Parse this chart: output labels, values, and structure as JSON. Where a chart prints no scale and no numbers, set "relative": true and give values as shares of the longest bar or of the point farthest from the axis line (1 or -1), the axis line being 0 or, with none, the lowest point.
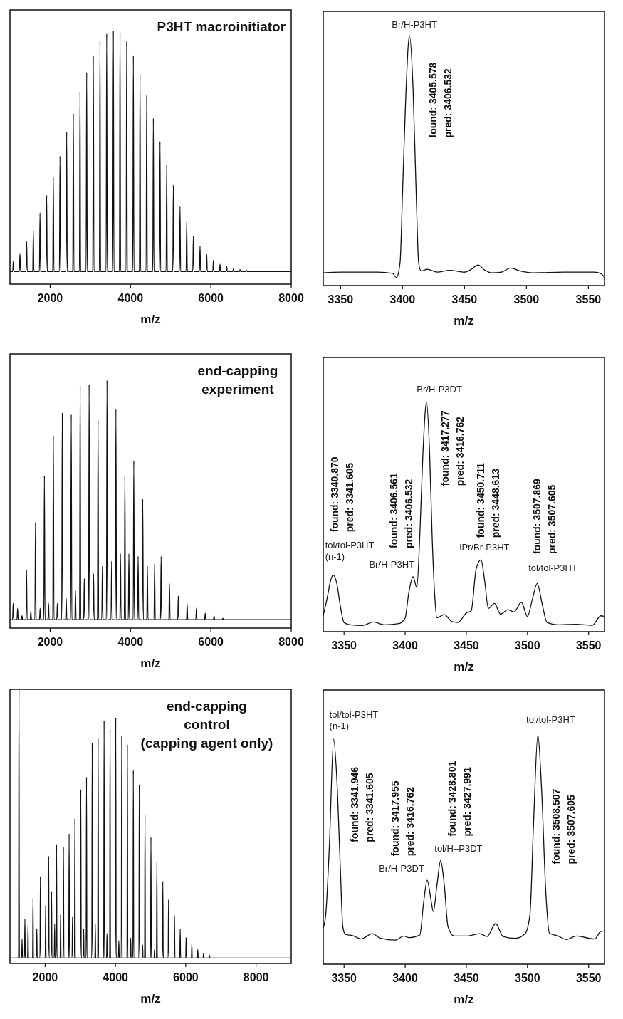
{
  "chart_data": [
    {
      "type": "line",
      "relative": true,
      "title": "P3HT macroinitiator",
      "xlabel": "m/z",
      "xlim": [
        1000,
        8000
      ],
      "xticks": [
        2000,
        4000,
        6000,
        8000
      ],
      "x": [
        1000,
        1068,
        1083,
        1098,
        1234,
        1249,
        1264,
        1400,
        1415,
        1430,
        1566,
        1581,
        1596,
        1732,
        1747,
        1762,
        1898,
        1913,
        1928,
        2064,
        2079,
        2094,
        2230,
        2245,
        2260,
        2396,
        2411,
        2426,
        2562,
        2577,
        2592,
        2728,
        2743,
        2758,
        2894,
        2909,
        2924,
        3060,
        3075,
        3090,
        3226,
        3241,
        3256,
        3392,
        3407,
        3422,
        3558,
        3573,
        3588,
        3724,
        3739,
        3754,
        3890,
        3905,
        3920,
        4056,
        4071,
        4086,
        4222,
        4237,
        4252,
        4388,
        4403,
        4418,
        4554,
        4569,
        4584,
        4720,
        4735,
        4750,
        4886,
        4901,
        4916,
        5052,
        5067,
        5082,
        5218,
        5233,
        5248,
        5384,
        5399,
        5414,
        5550,
        5565,
        5580,
        5716,
        5731,
        5746,
        5882,
        5897,
        5912,
        6048,
        6063,
        6078,
        6214,
        6229,
        6244,
        6380,
        6395,
        6410,
        6546,
        6561,
        6576,
        6712,
        6727,
        6742,
        6878,
        6893,
        6908,
        8000
      ],
      "series": [
        {
          "color": "#111111",
          "values": [
            0.05,
            0.05,
            0.089,
            0.05,
            0.05,
            0.121,
            0.05,
            0.05,
            0.168,
            0.05,
            0.05,
            0.213,
            0.05,
            0.05,
            0.282,
            0.05,
            0.05,
            0.351,
            0.05,
            0.05,
            0.422,
            0.05,
            0.05,
            0.506,
            0.05,
            0.05,
            0.6,
            0.05,
            0.05,
            0.674,
            0.05,
            0.05,
            0.762,
            0.05,
            0.05,
            0.837,
            0.05,
            0.05,
            0.901,
            0.05,
            0.05,
            0.96,
            0.05,
            0.05,
            0.989,
            0.05,
            0.05,
            1,
            0.05,
            0.05,
            0.994,
            0.05,
            0.05,
            0.96,
            0.05,
            0.05,
            0.903,
            0.05,
            0.05,
            0.829,
            0.05,
            0.05,
            0.746,
            0.05,
            0.05,
            0.655,
            0.05,
            0.05,
            0.564,
            0.05,
            0.05,
            0.471,
            0.05,
            0.05,
            0.391,
            0.05,
            0.05,
            0.309,
            0.05,
            0.05,
            0.246,
            0.05,
            0.05,
            0.189,
            0.05,
            0.05,
            0.15,
            0.05,
            0.05,
            0.117,
            0.05,
            0.05,
            0.094,
            0.05,
            0.05,
            0.078,
            0.05,
            0.05,
            0.069,
            0.05,
            0.05,
            0.061,
            0.05,
            0.05,
            0.057,
            0.05,
            0.05,
            0.054,
            0.05,
            0.05
          ]
        }
      ]
    },
    {
      "type": "line",
      "relative": true,
      "xlabel": "m/z",
      "xlim": [
        3336,
        3563
      ],
      "xticks": [
        3350,
        3400,
        3450,
        3500,
        3550
      ],
      "x": [
        3336,
        3350,
        3380,
        3392,
        3395,
        3398,
        3400,
        3402.5,
        3405.6,
        3408.5,
        3411,
        3413,
        3415,
        3420,
        3428,
        3438,
        3450,
        3455,
        3461,
        3466,
        3472,
        3480,
        3487,
        3495,
        3505,
        3530,
        3555,
        3561,
        3563
      ],
      "series": [
        {
          "color": "#111111",
          "values": [
            0.051,
            0.054,
            0.054,
            0.049,
            0.032,
            0.091,
            0.369,
            0.74,
            1,
            0.787,
            0.369,
            0.091,
            0.058,
            0.065,
            0.054,
            0.061,
            0.054,
            0.063,
            0.082,
            0.063,
            0.051,
            0.054,
            0.07,
            0.058,
            0.051,
            0.054,
            0.054,
            0.045,
            0.031
          ]
        }
      ],
      "annotations": [
        {
          "text": "Br/H-P3HT",
          "x": 3405.6,
          "y": 1
        },
        "found: 3405.578\npred: 3406.532"
      ]
    },
    {
      "type": "line",
      "relative": true,
      "title": "end-capping\nexperiment",
      "xlabel": "m/z",
      "xlim": [
        1000,
        8000
      ],
      "xticks": [
        2000,
        4000,
        6000,
        8000
      ],
      "x": [
        1000,
        1065,
        1080,
        1095,
        1175,
        1190,
        1205,
        1285,
        1300,
        1315,
        1397,
        1412,
        1427,
        1505,
        1520,
        1535,
        1620,
        1635,
        1650,
        1735,
        1750,
        1765,
        1842,
        1857,
        1872,
        1945,
        1960,
        1975,
        2065,
        2080,
        2095,
        2165,
        2180,
        2195,
        2287,
        2302,
        2317,
        2385,
        2400,
        2415,
        2510,
        2525,
        2540,
        2615,
        2630,
        2645,
        2732,
        2747,
        2762,
        2835,
        2850,
        2865,
        2955,
        2970,
        2985,
        3065,
        3080,
        3095,
        3177,
        3192,
        3207,
        3285,
        3300,
        3315,
        3400,
        3415,
        3430,
        3515,
        3530,
        3545,
        3622,
        3637,
        3652,
        3735,
        3750,
        3765,
        3845,
        3860,
        3875,
        3945,
        3960,
        3975,
        4067,
        4082,
        4097,
        4175,
        4190,
        4205,
        4290,
        4305,
        4320,
        4405,
        4420,
        4435,
        4585,
        4600,
        4615,
        4747,
        4762,
        4777,
        4955,
        4970,
        4985,
        5175,
        5190,
        5205,
        5395,
        5410,
        5425,
        5625,
        5640,
        5655,
        5845,
        5860,
        5875,
        6065,
        6080,
        6095,
        6285,
        6300,
        6315,
        8000
      ],
      "series": [
        {
          "color": "#111111",
          "values": [
            0.034,
            0.034,
            0.1,
            0.034,
            0.034,
            0.08,
            0.034,
            0.034,
            0.05,
            0.034,
            0.034,
            0.235,
            0.034,
            0.034,
            0.07,
            0.034,
            0.034,
            0.427,
            0.034,
            0.034,
            0.08,
            0.034,
            0.034,
            0.616,
            0.034,
            0.034,
            0.1,
            0.034,
            0.034,
            0.778,
            0.034,
            0.034,
            0.1,
            0.034,
            0.034,
            0.869,
            0.034,
            0.034,
            0.12,
            0.034,
            0.034,
            0.862,
            0.034,
            0.034,
            0.15,
            0.034,
            0.034,
            0.978,
            0.034,
            0.034,
            0.2,
            0.034,
            0.034,
            0.984,
            0.034,
            0.034,
            0.22,
            0.034,
            0.034,
            0.84,
            0.034,
            0.034,
            0.25,
            0.034,
            0.034,
            1,
            0.034,
            0.034,
            0.27,
            0.034,
            0.034,
            0.883,
            0.034,
            0.034,
            0.3,
            0.034,
            0.034,
            0.616,
            0.034,
            0.034,
            0.3,
            0.034,
            0.034,
            0.675,
            0.034,
            0.034,
            0.29,
            0.034,
            0.034,
            0.521,
            0.034,
            0.034,
            0.25,
            0.034,
            0.034,
            0.26,
            0.034,
            0.034,
            0.29,
            0.034,
            0.034,
            0.18,
            0.034,
            0.034,
            0.13,
            0.034,
            0.034,
            0.1,
            0.034,
            0.034,
            0.08,
            0.034,
            0.034,
            0.06,
            0.034,
            0.034,
            0.05,
            0.034,
            0.034,
            0.04,
            0.034,
            0.034
          ]
        }
      ]
    },
    {
      "type": "line",
      "relative": true,
      "xlabel": "m/z",
      "xlim": [
        3333,
        3563
      ],
      "xticks": [
        3350,
        3400,
        3450,
        3500,
        3550
      ],
      "x": [
        3333,
        3336,
        3339,
        3341,
        3344,
        3347,
        3350,
        3355,
        3365,
        3374,
        3383,
        3395,
        3400,
        3403,
        3406.5,
        3409.5,
        3412,
        3414.5,
        3417.5,
        3420,
        3422,
        3424,
        3426,
        3432,
        3438,
        3443,
        3450,
        3454,
        3458,
        3462,
        3465,
        3468,
        3473,
        3478,
        3484,
        3489,
        3495,
        3500,
        3504,
        3508,
        3512,
        3516,
        3525,
        3540,
        3553,
        3560,
        3563
      ],
      "series": [
        {
          "color": "#111111",
          "values": [
            0.071,
            0.141,
            0.222,
            0.247,
            0.212,
            0.111,
            0.04,
            0.03,
            0.027,
            0.042,
            0.03,
            0.035,
            0.06,
            0.171,
            0.239,
            0.192,
            0.423,
            0.776,
            1,
            0.776,
            0.423,
            0.171,
            0.06,
            0.074,
            0.045,
            0.04,
            0.081,
            0.091,
            0.272,
            0.313,
            0.222,
            0.101,
            0.123,
            0.076,
            0.096,
            0.086,
            0.128,
            0.066,
            0.141,
            0.21,
            0.121,
            0.04,
            0.03,
            0.032,
            0.028,
            0.069,
            0.066
          ]
        }
      ],
      "annotations": [
        {
          "text": "tol/tol-P3HT\n(n-1)",
          "x": 3341,
          "y": 0.247
        },
        {
          "text": "Br/H-P3HT",
          "x": 3406.5,
          "y": 0.239
        },
        {
          "text": "Br/H-P3DT",
          "x": 3417.5,
          "y": 1
        },
        {
          "text": "iPr/Br-P3HT",
          "x": 3462,
          "y": 0.313
        },
        {
          "text": "tol/tol-P3HT",
          "x": 3508,
          "y": 0.21
        },
        "found: 3340.870\npred: 3341.605",
        "found: 3406.561\npred: 3406.532",
        "found: 3417.277\npred: 3416.762",
        "found: 3450.711\npred: 3448.613",
        "found: 3507.869\npred: 3507.605"
      ]
    },
    {
      "type": "line",
      "relative": true,
      "title": "end-capping\ncontrol\n(capping agent only)",
      "xlabel": "m/z",
      "xlim": [
        1000,
        9000
      ],
      "xticks": [
        2000,
        4000,
        6000,
        8000
      ],
      "x": [
        1000,
        1244,
        1256,
        1268,
        1332,
        1344,
        1356,
        1413,
        1425,
        1437,
        1501,
        1513,
        1525,
        1643,
        1655,
        1667,
        1751,
        1763,
        1775,
        1853,
        1865,
        1877,
        2002,
        2014,
        2026,
        2089,
        2101,
        2113,
        2171,
        2183,
        2195,
        2259,
        2271,
        2283,
        2313,
        2325,
        2337,
        2428,
        2440,
        2452,
        2509,
        2521,
        2533,
        2671,
        2683,
        2695,
        2766,
        2778,
        2790,
        2834,
        2846,
        2858,
        3003,
        3015,
        3027,
        3084,
        3096,
        3108,
        3165,
        3177,
        3189,
        3327,
        3339,
        3351,
        3415,
        3427,
        3439,
        3496,
        3508,
        3520,
        3665,
        3677,
        3689,
        3747,
        3759,
        3771,
        3835,
        3847,
        3859,
        3997,
        4009,
        4021,
        4085,
        4097,
        4109,
        4166,
        4178,
        4190,
        4328,
        4340,
        4352,
        4423,
        4435,
        4447,
        4497,
        4509,
        4521,
        4667,
        4679,
        4691,
        4761,
        4773,
        4785,
        4829,
        4841,
        4853,
        4998,
        5010,
        5022,
        5099,
        5111,
        5123,
        5167,
        5179,
        5191,
        5336,
        5348,
        5360,
        5499,
        5511,
        5523,
        5668,
        5680,
        5692,
        5830,
        5842,
        5854,
        5999,
        6011,
        6023,
        6161,
        6173,
        6185,
        6331,
        6343,
        6355,
        6493,
        6505,
        6517,
        6662,
        6674,
        6686,
        9000
      ],
      "series": [
        {
          "color": "#111111",
          "values": [
            0.02,
            0.02,
            1,
            0.02,
            0.02,
            0.09,
            0.02,
            0.02,
            0.162,
            0.02,
            0.02,
            0.141,
            0.02,
            0.02,
            0.238,
            0.02,
            0.02,
            0.127,
            0.02,
            0.02,
            0.318,
            0.02,
            0.02,
            0.211,
            0.02,
            0.02,
            0.392,
            0.02,
            0.02,
            0.264,
            0.02,
            0.02,
            0.143,
            0.02,
            0.02,
            0.435,
            0.02,
            0.02,
            0.179,
            0.02,
            0.02,
            0.424,
            0.02,
            0.02,
            0.473,
            0.02,
            0.02,
            0.169,
            0.02,
            0.02,
            0.529,
            0.02,
            0.02,
            0.635,
            0.02,
            0.02,
            0.127,
            0.02,
            0.02,
            0.68,
            0.02,
            0.02,
            0.805,
            0.02,
            0.02,
            0.143,
            0.02,
            0.02,
            0.821,
            0.02,
            0.02,
            0.886,
            0.02,
            0.02,
            0.11,
            0.02,
            0.02,
            0.855,
            0.02,
            0.02,
            0.895,
            0.02,
            0.02,
            0.084,
            0.02,
            0.02,
            0.829,
            0.02,
            0.02,
            0.799,
            0.02,
            0.02,
            0.093,
            0.02,
            0.02,
            0.704,
            0.02,
            0.02,
            0.653,
            0.02,
            0.02,
            0.068,
            0.02,
            0.02,
            0.543,
            0.02,
            0.02,
            0.46,
            0.02,
            0.02,
            0.051,
            0.02,
            0.02,
            0.369,
            0.02,
            0.02,
            0.3,
            0.02,
            0.02,
            0.233,
            0.02,
            0.02,
            0.175,
            0.02,
            0.02,
            0.127,
            0.02,
            0.02,
            0.095,
            0.02,
            0.02,
            0.072,
            0.02,
            0.02,
            0.051,
            0.02,
            0.02,
            0.036,
            0.02,
            0.02,
            0.03,
            0.02,
            0.02
          ]
        }
      ]
    },
    {
      "type": "line",
      "relative": true,
      "xlabel": "m/z",
      "xlim": [
        3333,
        3563
      ],
      "xticks": [
        3350,
        3400,
        3450,
        3500,
        3550
      ],
      "x": [
        3333,
        3335,
        3338,
        3341.5,
        3344,
        3347,
        3349,
        3351,
        3357,
        3364,
        3373,
        3380,
        3392,
        3399,
        3403,
        3412,
        3415,
        3418,
        3421,
        3423,
        3426,
        3429,
        3432,
        3435,
        3440,
        3450,
        3461,
        3467,
        3474,
        3480,
        3490,
        3498,
        3502,
        3505,
        3508.5,
        3511.5,
        3515,
        3518,
        3525,
        3532,
        3540,
        3555,
        3560,
        3563
      ],
      "series": [
        {
          "color": "#111111",
          "values": [
            0.159,
            0.214,
            0.515,
            0.982,
            0.82,
            0.416,
            0.164,
            0.13,
            0.125,
            0.11,
            0.133,
            0.113,
            0.105,
            0.123,
            0.116,
            0.128,
            0.265,
            0.366,
            0.285,
            0.229,
            0.345,
            0.452,
            0.345,
            0.164,
            0.123,
            0.123,
            0.133,
            0.121,
            0.177,
            0.121,
            0.113,
            0.133,
            0.214,
            0.618,
            1,
            0.77,
            0.315,
            0.135,
            0.123,
            0.108,
            0.123,
            0.11,
            0.143,
            0.145
          ]
        }
      ],
      "annotations": [
        {
          "text": "tol/tol-P3HT\n(n-1)",
          "x": 3341.5,
          "y": 0.982
        },
        {
          "text": "Br/H-P3DT",
          "x": 3418,
          "y": 0.366
        },
        {
          "text": "tol/H–P3DT",
          "x": 3429,
          "y": 0.452
        },
        {
          "text": "tol/tol-P3HT",
          "x": 3508.5,
          "y": 1
        },
        "found: 3341.946\npred: 3341.605",
        "found: 3417.955\npred: 3416.762",
        "found: 3428.801\npred: 3427.991",
        "found: 3508.507\npred: 3507.605"
      ]
    }
  ]
}
